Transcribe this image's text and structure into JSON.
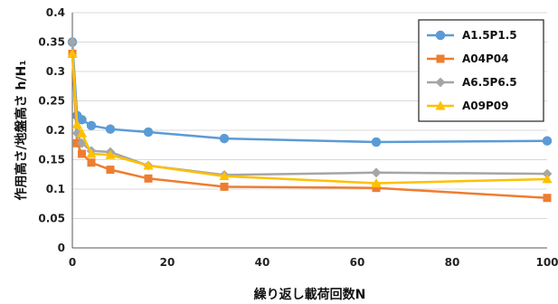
{
  "chart_data": {
    "type": "line",
    "xlabel": "繰り返し載荷回数N",
    "ylabel": "作用高さ/地盤高さ h/H₁",
    "xlim": [
      0,
      100
    ],
    "ylim": [
      0,
      0.4
    ],
    "xticks": [
      0,
      20,
      40,
      60,
      80,
      100
    ],
    "yticks": [
      0,
      0.05,
      0.1,
      0.15,
      0.2,
      0.25,
      0.3,
      0.35,
      0.4
    ],
    "ytick_labels": [
      "0",
      "0.05",
      "0.1",
      "0.15",
      "0.2",
      "0.25",
      "0.3",
      "0.35",
      "0.4"
    ],
    "grid": "horizontal",
    "legend_position": "top-right",
    "series": [
      {
        "name": "A1.5P1.5",
        "color": "#5B9BD5",
        "marker": "circle",
        "x": [
          0,
          1,
          2,
          4,
          8,
          16,
          32,
          64,
          100
        ],
        "y": [
          0.35,
          0.225,
          0.218,
          0.208,
          0.202,
          0.197,
          0.186,
          0.18,
          0.182
        ]
      },
      {
        "name": "A04P04",
        "color": "#ED7D31",
        "marker": "square",
        "x": [
          0,
          1,
          2,
          4,
          8,
          16,
          32,
          64,
          100
        ],
        "y": [
          0.33,
          0.178,
          0.16,
          0.145,
          0.133,
          0.118,
          0.104,
          0.102,
          0.085
        ]
      },
      {
        "name": "A6.5P6.5",
        "color": "#A5A5A5",
        "marker": "diamond",
        "x": [
          0,
          1,
          2,
          4,
          8,
          16,
          32,
          64,
          100
        ],
        "y": [
          0.35,
          0.195,
          0.178,
          0.165,
          0.163,
          0.14,
          0.124,
          0.128,
          0.126
        ]
      },
      {
        "name": "A09P09",
        "color": "#FFC000",
        "marker": "triangle",
        "x": [
          0,
          1,
          2,
          4,
          8,
          16,
          32,
          64,
          100
        ],
        "y": [
          0.33,
          0.21,
          0.195,
          0.16,
          0.158,
          0.14,
          0.122,
          0.11,
          0.117
        ]
      }
    ]
  }
}
